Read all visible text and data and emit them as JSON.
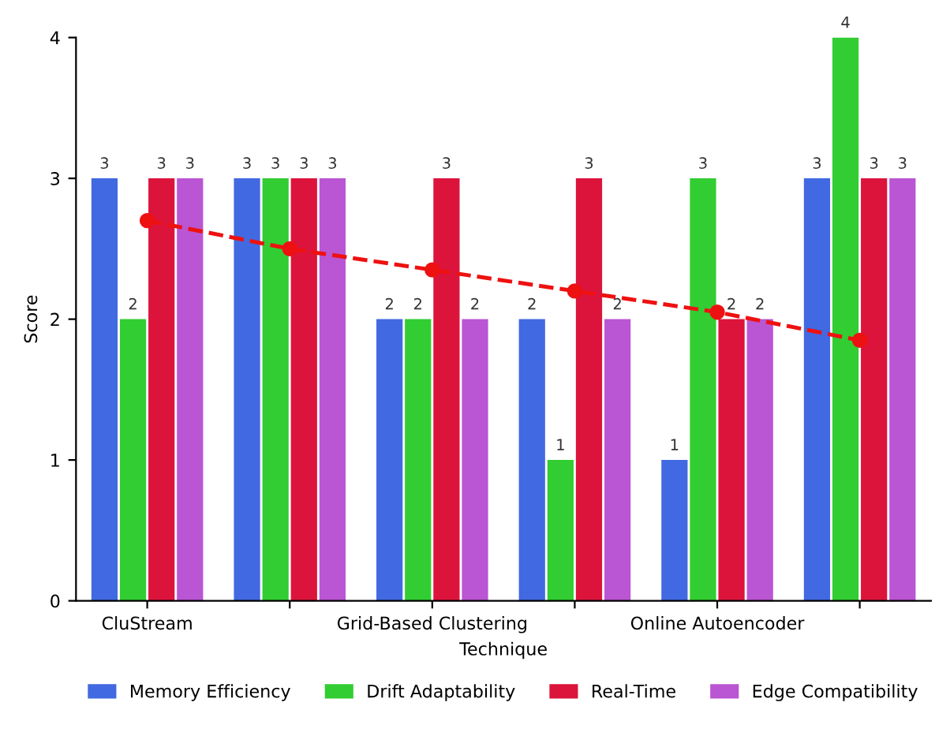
{
  "chart_data": {
    "type": "bar",
    "xlabel": "Technique",
    "ylabel": "Score",
    "categories": [
      "CluStream",
      null,
      "Grid-Based Clustering",
      null,
      "Online Autoencoder",
      null
    ],
    "series": [
      {
        "name": "Memory Efficiency",
        "color": "#4169e1",
        "values": [
          3,
          3,
          2,
          2,
          1,
          3
        ],
        "value_labels": [
          "3",
          "3",
          "2",
          "2",
          "1",
          "3"
        ]
      },
      {
        "name": "Drift Adaptability",
        "color": "#32cd32",
        "values": [
          2,
          3,
          2,
          1,
          3,
          4
        ],
        "value_labels": [
          "2",
          "3",
          "2",
          "1",
          "3",
          "4"
        ]
      },
      {
        "name": "Real-Time",
        "color": "#dc143c",
        "values": [
          3,
          3,
          3,
          3,
          2,
          3
        ],
        "value_labels": [
          "3",
          "3",
          "3",
          "3",
          "2",
          "3"
        ]
      },
      {
        "name": "Edge Compatibility",
        "color": "#ba55d3",
        "values": [
          3,
          3,
          2,
          2,
          2,
          3
        ],
        "value_labels": [
          "3",
          "3",
          "2",
          "2",
          "2",
          "3"
        ]
      },
      {
        "type": "line",
        "color": "#ee1111",
        "values": [
          2.7,
          2.5,
          2.35,
          2.2,
          2.05,
          1.85
        ],
        "marker": "circle",
        "line_style": "dashed"
      }
    ],
    "ylim": [
      0,
      4
    ],
    "yticks": [
      0,
      1,
      2,
      3,
      4
    ],
    "grid": false,
    "legend": "bottom"
  }
}
